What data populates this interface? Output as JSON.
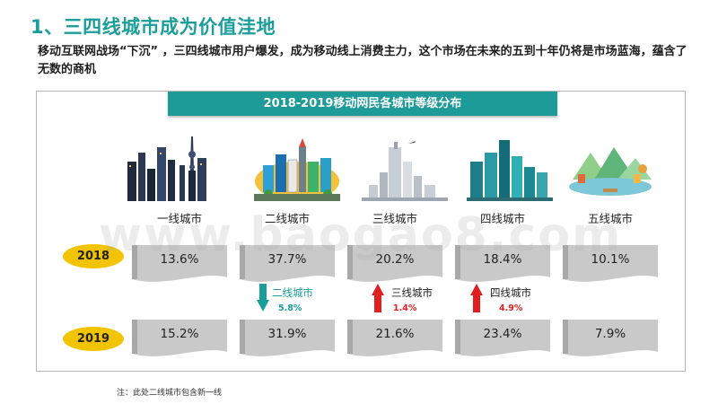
{
  "title": "1、三四线城市成为价值洼地",
  "intro": "移动互联网战场“下沉” ，三四线城市用户爆发，成为移动线上消费主力，这个市场在未来的五到十年仍将是市场蓝海，蕴含了无数的商机",
  "banner": "2018-2019移动网民各城市等级分布",
  "tiers": [
    "一线城市",
    "二线城市",
    "三线城市",
    "四线城市",
    "五线城市"
  ],
  "years": [
    "2018",
    "2019"
  ],
  "values_2018": [
    "13.6%",
    "37.7%",
    "20.2%",
    "18.4%",
    "10.1%"
  ],
  "values_2019": [
    "15.2%",
    "31.9%",
    "21.6%",
    "23.4%",
    "7.9%"
  ],
  "changes": [
    {
      "label": "二线城市",
      "value": "5.8%",
      "direction": "down",
      "color": "#1a9e9a"
    },
    {
      "label": "三线城市",
      "value": "1.4%",
      "direction": "up",
      "color": "#e02020"
    },
    {
      "label": "四线城市",
      "value": "4.9%",
      "direction": "up",
      "color": "#e02020"
    }
  ],
  "watermark": "www.baogao8.com",
  "footnote": "注：此处二线城市包含新一线",
  "colors": {
    "accent": "#1c9b98",
    "badge": "#f2c400",
    "flag": "#c9c9c9",
    "up": "#e02020",
    "down": "#1a9e9a"
  }
}
